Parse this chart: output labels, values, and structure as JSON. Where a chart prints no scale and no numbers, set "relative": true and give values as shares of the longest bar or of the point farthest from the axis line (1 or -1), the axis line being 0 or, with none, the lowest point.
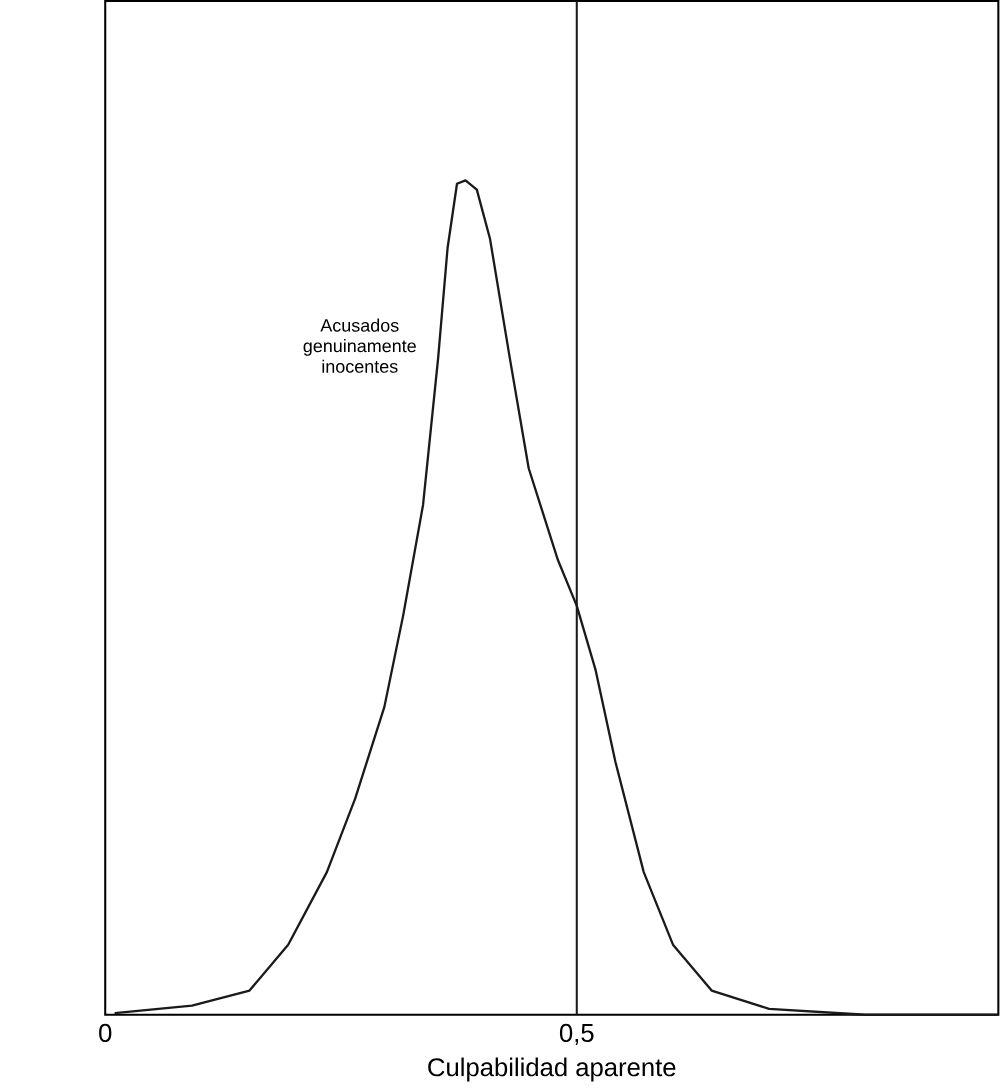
{
  "chart_data": {
    "type": "line",
    "relative": true,
    "xlabel": "Culpabilidad aparente",
    "x": [
      0.01,
      0.092,
      0.153,
      0.194,
      0.235,
      0.265,
      0.296,
      0.316,
      0.337,
      0.353,
      0.363,
      0.373,
      0.382,
      0.394,
      0.408,
      0.429,
      0.449,
      0.48,
      0.5,
      0.52,
      0.541,
      0.571,
      0.602,
      0.643,
      0.704,
      0.806,
      0.947
    ],
    "series": [
      {
        "color": "#1a1a1a",
        "values": [
          0.002,
          0.011,
          0.029,
          0.084,
          0.171,
          0.259,
          0.369,
          0.479,
          0.611,
          0.787,
          0.919,
          0.996,
          1.0,
          0.989,
          0.93,
          0.787,
          0.655,
          0.545,
          0.49,
          0.413,
          0.303,
          0.171,
          0.084,
          0.029,
          0.007,
          0,
          0
        ]
      }
    ],
    "xlim": [
      0,
      0.947
    ],
    "xticks": [
      {
        "value": 0,
        "label": "0"
      },
      {
        "value": 0.5,
        "label": "0,5"
      }
    ],
    "ref_lines": [
      {
        "axis": "x",
        "value": 0.5,
        "color": "#1a1a1a"
      }
    ],
    "annotations": [
      "Acusados genuinamente inocentes"
    ]
  }
}
